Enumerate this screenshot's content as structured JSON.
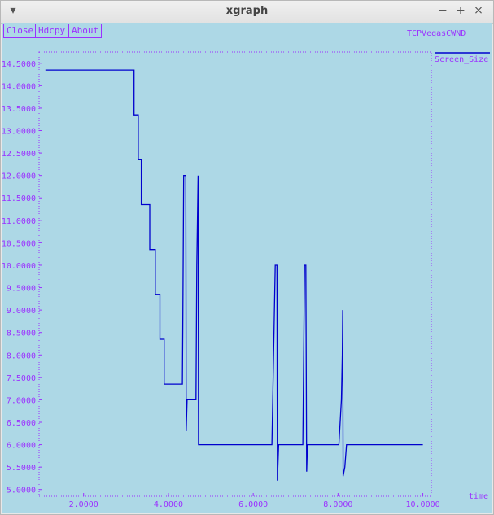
{
  "window": {
    "title": "xgraph",
    "menu_icon": "▾",
    "minimize_icon": "−",
    "maximize_icon": "+",
    "close_icon": "×"
  },
  "toolbar": {
    "close_label": "Close",
    "hdcpy_label": "Hdcpy",
    "about_label": "About"
  },
  "colors": {
    "background": "#add8e6",
    "axis": "#9b30ff",
    "series": "#0000cd"
  },
  "chart_data": {
    "type": "line",
    "title": "TCPVegasCWND",
    "xlabel": "time",
    "ylabel": "",
    "legend": "Screen_Size",
    "xlim": [
      0.95,
      10.2
    ],
    "ylim": [
      4.85,
      14.75
    ],
    "x_ticks": [
      2,
      4,
      6,
      8,
      10
    ],
    "x_tick_labels": [
      "2.0000",
      "4.0000",
      "6.0000",
      "8.0000",
      "10.0000"
    ],
    "y_ticks": [
      5,
      5.5,
      6,
      6.5,
      7,
      7.5,
      8,
      8.5,
      9,
      9.5,
      10,
      10.5,
      11,
      11.5,
      12,
      12.5,
      13,
      13.5,
      14,
      14.5
    ],
    "y_tick_labels": [
      "5.0000",
      "5.5000",
      "6.0000",
      "6.5000",
      "7.0000",
      "7.5000",
      "8.0000",
      "8.5000",
      "9.0000",
      "9.5000",
      "10.0000",
      "10.5000",
      "11.0000",
      "11.5000",
      "12.0000",
      "12.5000",
      "13.0000",
      "13.5000",
      "14.0000",
      "14.5000"
    ],
    "series": [
      {
        "name": "Screen_Size",
        "points": [
          [
            1.1,
            14.35
          ],
          [
            3.19,
            14.35
          ],
          [
            3.19,
            13.35
          ],
          [
            3.29,
            13.35
          ],
          [
            3.29,
            12.35
          ],
          [
            3.36,
            12.35
          ],
          [
            3.36,
            11.35
          ],
          [
            3.56,
            11.35
          ],
          [
            3.56,
            10.35
          ],
          [
            3.69,
            10.35
          ],
          [
            3.69,
            9.35
          ],
          [
            3.8,
            9.35
          ],
          [
            3.8,
            8.35
          ],
          [
            3.9,
            8.35
          ],
          [
            3.9,
            7.35
          ],
          [
            4.33,
            7.35
          ],
          [
            4.34,
            8.6
          ],
          [
            4.36,
            12.0
          ],
          [
            4.41,
            12.0
          ],
          [
            4.42,
            6.3
          ],
          [
            4.44,
            7.0
          ],
          [
            4.65,
            7.0
          ],
          [
            4.67,
            10.0
          ],
          [
            4.7,
            12.0
          ],
          [
            4.71,
            6.0
          ],
          [
            6.44,
            6.0
          ],
          [
            6.52,
            10.0
          ],
          [
            6.56,
            10.0
          ],
          [
            6.57,
            5.2
          ],
          [
            6.6,
            6.0
          ],
          [
            7.17,
            6.0
          ],
          [
            7.21,
            10.0
          ],
          [
            7.24,
            10.0
          ],
          [
            7.26,
            5.4
          ],
          [
            7.28,
            6.0
          ],
          [
            8.02,
            6.0
          ],
          [
            8.08,
            7.0
          ],
          [
            8.1,
            8.0
          ],
          [
            8.11,
            9.0
          ],
          [
            8.12,
            5.3
          ],
          [
            8.16,
            5.5
          ],
          [
            8.2,
            6.0
          ],
          [
            10.0,
            6.0
          ]
        ]
      }
    ]
  }
}
